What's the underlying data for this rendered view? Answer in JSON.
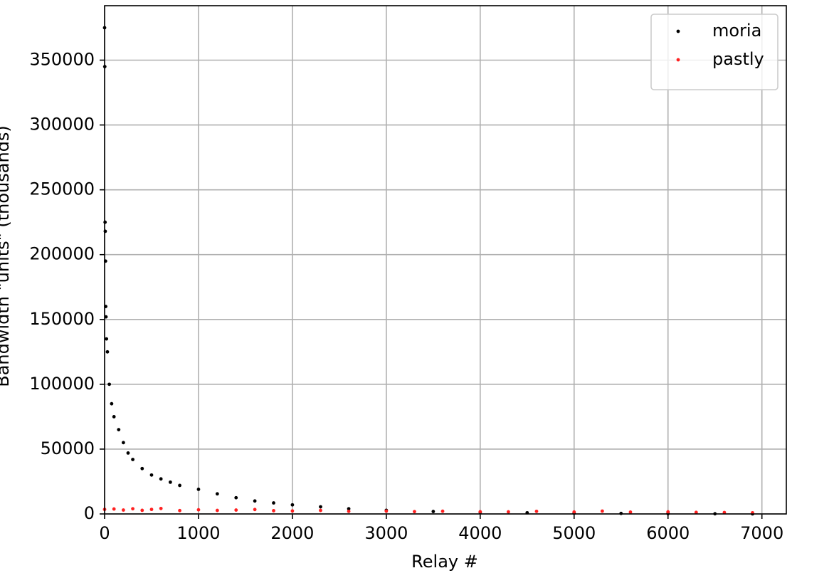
{
  "chart_data": {
    "type": "scatter",
    "xlabel": "Relay #",
    "ylabel": "Bandwidth \"units\" (thousands)",
    "xlim": [
      0,
      7260
    ],
    "xticks": [
      0,
      1000,
      2000,
      3000,
      4000,
      5000,
      6000,
      7000
    ],
    "ylim": [
      0,
      392000
    ],
    "yticks": [
      0,
      50000,
      100000,
      150000,
      200000,
      250000,
      300000,
      350000
    ],
    "grid": true,
    "legend": "upper right",
    "series": [
      {
        "name": "moria",
        "color": "#000000",
        "x": [
          0,
          2,
          5,
          7,
          10,
          12,
          15,
          20,
          30,
          50,
          75,
          100,
          150,
          200,
          250,
          300,
          400,
          500,
          600,
          700,
          800,
          1000,
          1200,
          1400,
          1600,
          1800,
          2000,
          2300,
          2600,
          3000,
          3500,
          4000,
          4500,
          5000,
          5500,
          6000,
          6500,
          6900
        ],
        "values": [
          375000,
          345000,
          225000,
          218000,
          195000,
          160000,
          152000,
          135000,
          125000,
          100000,
          85000,
          75000,
          65000,
          55000,
          47000,
          42000,
          35000,
          30000,
          27000,
          24500,
          22000,
          19000,
          15500,
          12500,
          10000,
          8500,
          7000,
          5500,
          4000,
          2800,
          1900,
          1300,
          900,
          600,
          400,
          250,
          120,
          50
        ]
      },
      {
        "name": "pastly",
        "color": "#ff2020",
        "x": [
          0,
          100,
          200,
          300,
          400,
          500,
          600,
          800,
          1000,
          1200,
          1400,
          1600,
          1800,
          2000,
          2300,
          2600,
          3000,
          3300,
          3600,
          4000,
          4300,
          4600,
          5000,
          5300,
          5600,
          6000,
          6300,
          6600,
          6900
        ],
        "values": [
          3500,
          3800,
          3000,
          4000,
          2800,
          3500,
          4200,
          2600,
          3200,
          2700,
          3000,
          3400,
          2500,
          2300,
          2700,
          2000,
          2200,
          1800,
          2100,
          1700,
          1600,
          2000,
          1500,
          2200,
          1400,
          1600,
          1200,
          1100,
          900
        ]
      }
    ]
  }
}
